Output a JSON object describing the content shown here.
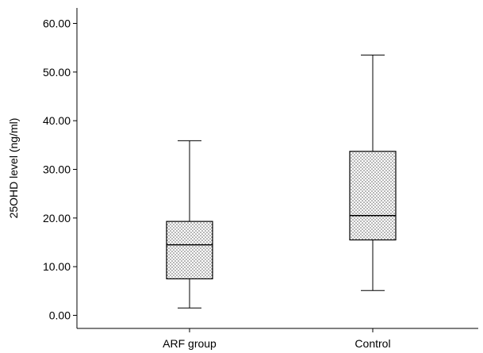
{
  "chart_data": {
    "type": "boxplot",
    "title": "",
    "xlabel": "",
    "ylabel": "25OHD level (ng/ml)",
    "ylim": [
      -2,
      62
    ],
    "yticks": [
      "0.00",
      "10.00",
      "20.00",
      "30.00",
      "40.00",
      "50.00",
      "60.00"
    ],
    "categories": [
      "ARF group",
      "Control"
    ],
    "boxes": [
      {
        "category": "ARF group",
        "min": 1.5,
        "q1": 7.5,
        "median": 14.5,
        "q3": 19.3,
        "max": 35.9
      },
      {
        "category": "Control",
        "min": 5.1,
        "q1": 15.5,
        "median": 20.5,
        "q3": 33.7,
        "max": 53.5
      }
    ],
    "grid": false,
    "box_fill": "dotted",
    "colors": {
      "stroke": "#000000",
      "dot": "#555555",
      "background": "#ffffff"
    }
  }
}
